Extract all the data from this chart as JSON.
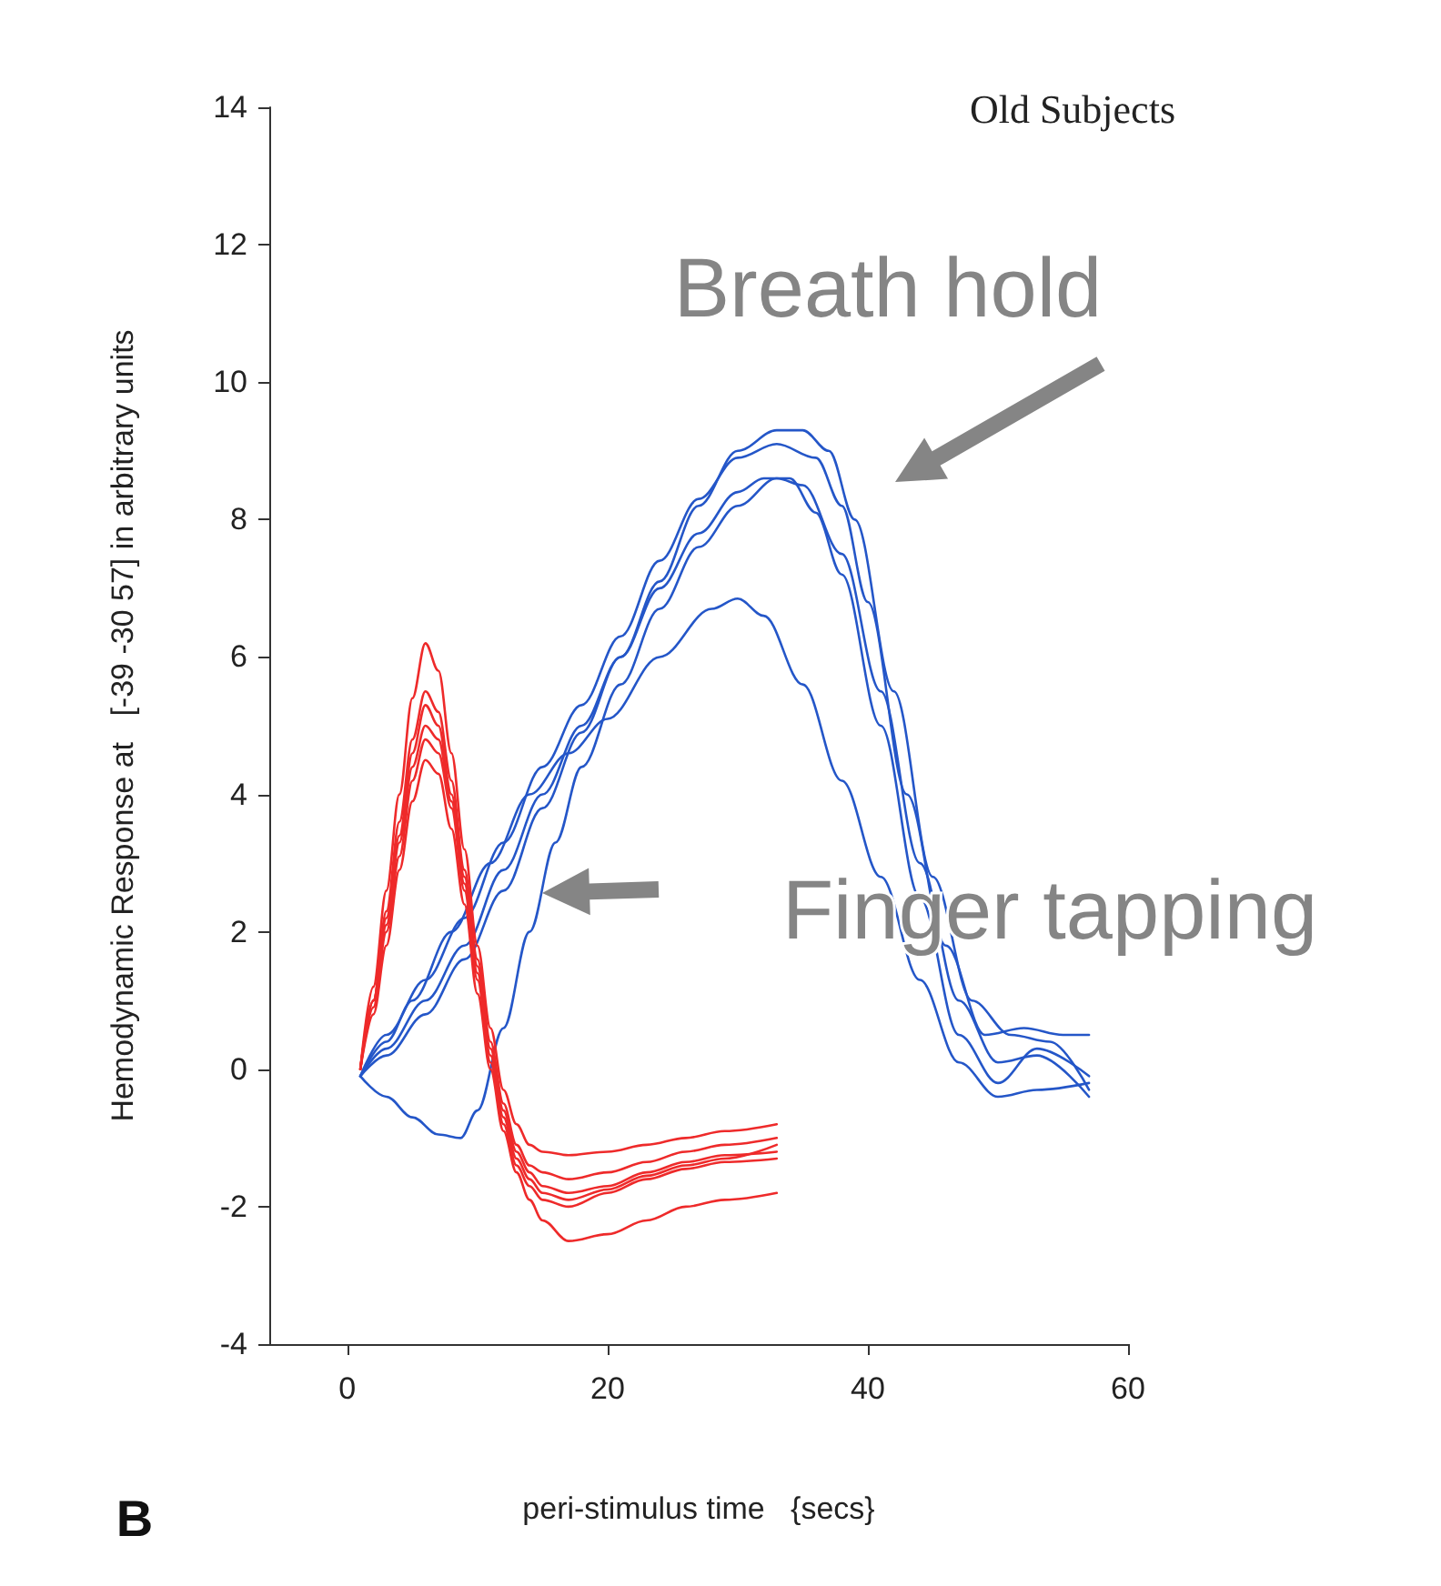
{
  "chart_data": {
    "type": "line",
    "title": "Old Subjects",
    "xlabel": "peri-stimulus time   {secs}",
    "ylabel": "Hemodynamic Response at   [-39 -30 57] in arbitrary units",
    "annotations": [
      "Breath hold",
      "Finger tapping",
      "B"
    ],
    "xlim": [
      -6,
      60
    ],
    "xticks": [
      0,
      20,
      40,
      60
    ],
    "ylim": [
      -4,
      14
    ],
    "yticks": [
      -4,
      -2,
      0,
      2,
      4,
      6,
      8,
      10,
      12,
      14
    ],
    "grid": false,
    "marker": "none",
    "line_style": "solid",
    "series": [
      {
        "color": "#2456c8",
        "x": [
          1,
          3,
          5,
          8,
          11,
          14,
          17,
          20,
          24,
          28,
          30,
          32,
          35,
          38,
          41,
          44,
          47,
          50,
          53,
          57
        ],
        "values": [
          -0.1,
          0.4,
          1.0,
          2.0,
          3.0,
          4.0,
          4.6,
          5.1,
          6.0,
          6.7,
          6.85,
          6.6,
          5.6,
          4.2,
          2.8,
          1.3,
          0.1,
          -0.4,
          -0.3,
          -0.2
        ]
      },
      {
        "color": "#2456c8",
        "x": [
          1,
          3,
          5,
          7,
          8.7,
          10,
          12,
          14,
          16,
          18,
          21,
          24,
          27,
          30,
          33,
          35,
          38,
          41,
          44,
          47,
          50,
          53,
          57
        ],
        "values": [
          -0.1,
          -0.4,
          -0.7,
          -0.95,
          -1.0,
          -0.6,
          0.6,
          2.0,
          3.3,
          4.4,
          5.6,
          6.7,
          7.6,
          8.2,
          8.6,
          8.5,
          7.5,
          5.5,
          3.0,
          1.0,
          0.1,
          0.2,
          -0.4
        ]
      },
      {
        "color": "#2456c8",
        "x": [
          1,
          3,
          6,
          9,
          12,
          15,
          18,
          21,
          24,
          27,
          30,
          33,
          35,
          37,
          39,
          42,
          45,
          48,
          51,
          54,
          57
        ],
        "values": [
          -0.1,
          0.3,
          1.0,
          1.8,
          2.9,
          4.0,
          5.0,
          6.0,
          7.1,
          8.2,
          9.0,
          9.3,
          9.3,
          9.0,
          8.0,
          5.5,
          2.8,
          1.0,
          0.5,
          0.4,
          -0.3
        ]
      },
      {
        "color": "#2456c8",
        "x": [
          1,
          3,
          6,
          9,
          12,
          15,
          18,
          21,
          24,
          27,
          30,
          33,
          36,
          38,
          40,
          43,
          46,
          49,
          52,
          55,
          57
        ],
        "values": [
          -0.1,
          0.5,
          1.3,
          2.2,
          3.3,
          4.4,
          5.3,
          6.3,
          7.4,
          8.3,
          8.9,
          9.1,
          8.9,
          8.2,
          6.8,
          4.0,
          1.8,
          0.5,
          0.6,
          0.5,
          0.5
        ]
      },
      {
        "color": "#2456c8",
        "x": [
          1,
          3,
          6,
          9,
          12,
          15,
          18,
          21,
          24,
          27,
          30,
          32,
          34,
          36,
          38,
          41,
          44,
          47,
          50,
          53,
          57
        ],
        "values": [
          -0.1,
          0.2,
          0.8,
          1.6,
          2.6,
          3.8,
          4.9,
          6.0,
          7.0,
          7.8,
          8.4,
          8.6,
          8.6,
          8.1,
          7.2,
          5.0,
          2.5,
          0.5,
          -0.2,
          0.3,
          -0.1
        ]
      },
      {
        "color": "#ee2a2a",
        "x": [
          1,
          2,
          3,
          4,
          5,
          6,
          7,
          8,
          9,
          10,
          11,
          12,
          13,
          14,
          15,
          17,
          20,
          23,
          26,
          29,
          33
        ],
        "values": [
          0,
          1.2,
          2.6,
          4.0,
          5.4,
          6.2,
          5.8,
          4.6,
          3.2,
          1.8,
          0.6,
          -0.3,
          -0.8,
          -1.1,
          -1.2,
          -1.25,
          -1.2,
          -1.1,
          -1.0,
          -0.9,
          -0.8
        ]
      },
      {
        "color": "#ee2a2a",
        "x": [
          1,
          2,
          3,
          4,
          5,
          6,
          7,
          8,
          9,
          10,
          11,
          12,
          13,
          14,
          15,
          17,
          20,
          23,
          26,
          29,
          33
        ],
        "values": [
          0,
          1.0,
          2.3,
          3.6,
          4.8,
          5.5,
          5.2,
          4.2,
          2.9,
          1.6,
          0.4,
          -0.5,
          -1.1,
          -1.4,
          -1.5,
          -1.6,
          -1.5,
          -1.35,
          -1.2,
          -1.1,
          -1.0
        ]
      },
      {
        "color": "#ee2a2a",
        "x": [
          1,
          2,
          3,
          4,
          5,
          6,
          7,
          8,
          9,
          10,
          11,
          12,
          13,
          14,
          15,
          17,
          20,
          23,
          26,
          29,
          33
        ],
        "values": [
          0,
          1.0,
          2.2,
          3.4,
          4.6,
          5.3,
          5.0,
          4.0,
          2.8,
          1.5,
          0.3,
          -0.6,
          -1.2,
          -1.5,
          -1.7,
          -1.8,
          -1.7,
          -1.5,
          -1.35,
          -1.25,
          -1.2
        ]
      },
      {
        "color": "#ee2a2a",
        "x": [
          1,
          2,
          3,
          4,
          5,
          6,
          7,
          8,
          9,
          10,
          11,
          12,
          13,
          14,
          15,
          17,
          20,
          23,
          26,
          29,
          33
        ],
        "values": [
          0,
          1.0,
          2.1,
          3.3,
          4.4,
          5.0,
          4.8,
          3.9,
          2.7,
          1.4,
          0.2,
          -0.7,
          -1.3,
          -1.6,
          -1.8,
          -1.9,
          -1.75,
          -1.55,
          -1.4,
          -1.3,
          -1.1
        ]
      },
      {
        "color": "#ee2a2a",
        "x": [
          1,
          2,
          3,
          4,
          5,
          6,
          7,
          8,
          9,
          10,
          11,
          12,
          13,
          14,
          15,
          17,
          20,
          23,
          26,
          29,
          33
        ],
        "values": [
          0,
          0.9,
          2.0,
          3.1,
          4.2,
          4.8,
          4.6,
          3.8,
          2.6,
          1.3,
          0.1,
          -0.8,
          -1.4,
          -1.7,
          -1.9,
          -2.0,
          -1.8,
          -1.6,
          -1.45,
          -1.35,
          -1.3
        ]
      },
      {
        "color": "#ee2a2a",
        "x": [
          1,
          2,
          3,
          4,
          5,
          6,
          7,
          8,
          9,
          10,
          11,
          12,
          13,
          14,
          15,
          17,
          20,
          23,
          26,
          29,
          33
        ],
        "values": [
          0,
          0.8,
          1.8,
          2.9,
          3.9,
          4.5,
          4.3,
          3.5,
          2.4,
          1.1,
          0,
          -0.9,
          -1.5,
          -1.9,
          -2.2,
          -2.5,
          -2.4,
          -2.2,
          -2.0,
          -1.9,
          -1.8
        ]
      }
    ]
  }
}
